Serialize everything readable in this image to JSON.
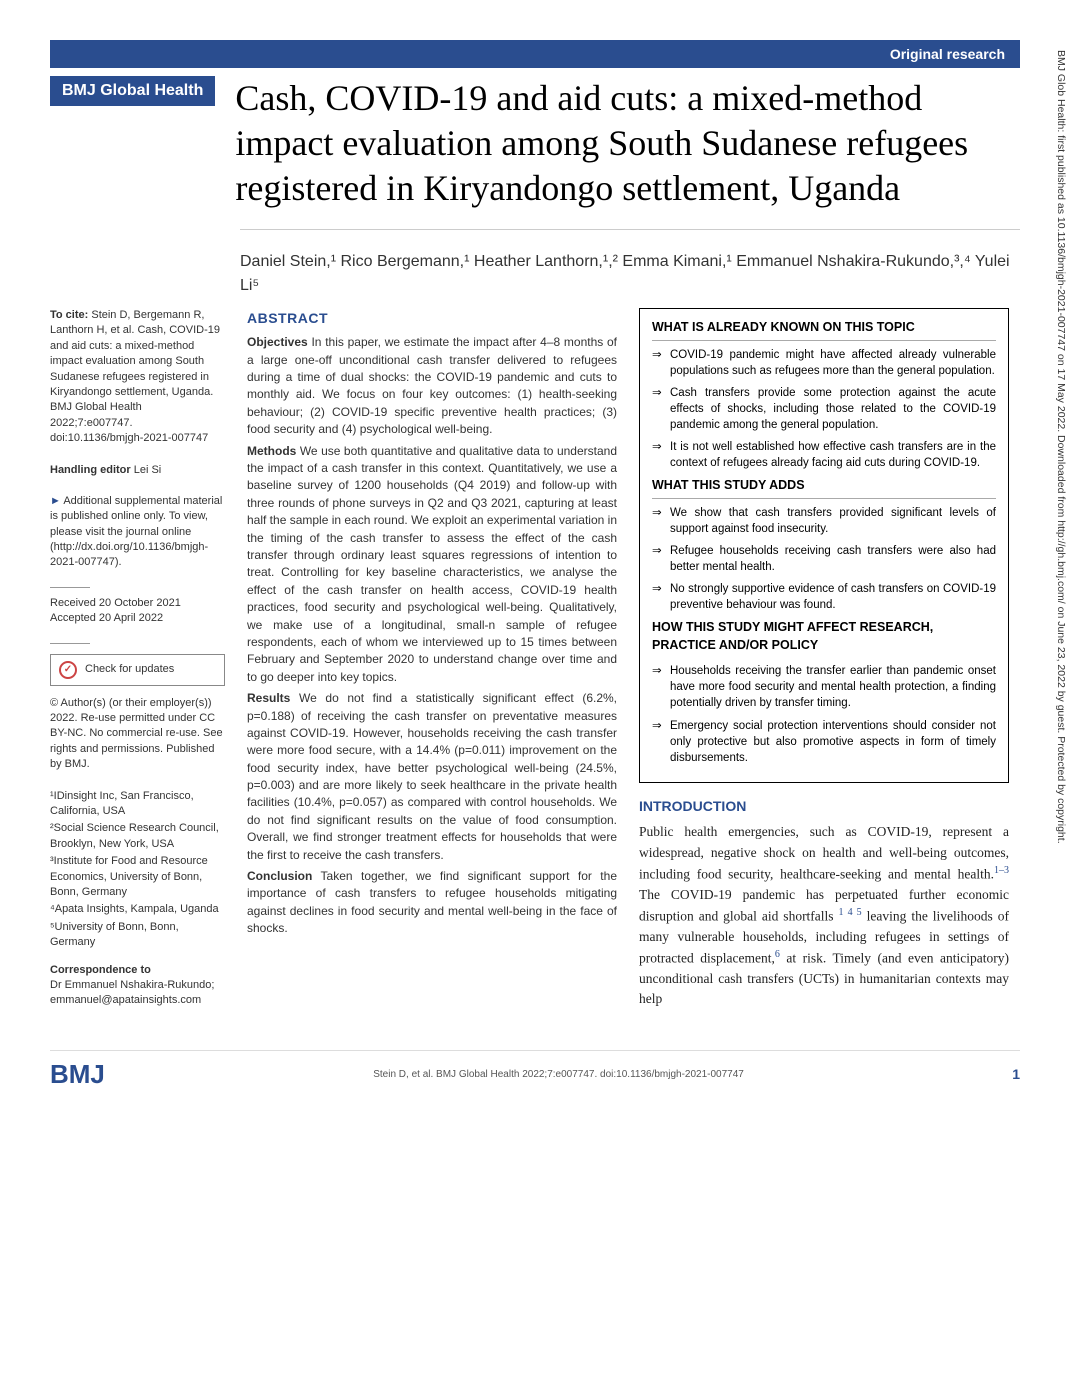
{
  "header": {
    "category": "Original research",
    "journal": "BMJ Global Health",
    "title": "Cash, COVID-19 and aid cuts: a mixed-method impact evaluation among South Sudanese refugees registered in Kiryandongo settlement, Uganda"
  },
  "authors": "Daniel Stein,¹ Rico Bergemann,¹ Heather Lanthorn,¹,² Emma Kimani,¹ Emmanuel Nshakira-Rukundo,³,⁴ Yulei Li⁵",
  "sidebar": {
    "cite_label": "To cite:",
    "cite_text": " Stein D, Bergemann R, Lanthorn H, et al. Cash, COVID-19 and aid cuts: a mixed-method impact evaluation among South Sudanese refugees registered in Kiryandongo settlement, Uganda. BMJ Global Health 2022;7:e007747. doi:10.1136/bmjgh-2021-007747",
    "editor_label": "Handling editor",
    "editor_name": " Lei Si",
    "supplement": "Additional supplemental material is published online only. To view, please visit the journal online (http://dx.doi.org/10.1136/bmjgh-2021-007747).",
    "received": "Received 20 October 2021",
    "accepted": "Accepted 20 April 2022",
    "check_updates": "Check for updates",
    "copyright": "© Author(s) (or their employer(s)) 2022. Re-use permitted under CC BY-NC. No commercial re-use. See rights and permissions. Published by BMJ.",
    "affils": [
      "¹IDinsight Inc, San Francisco, California, USA",
      "²Social Science Research Council, Brooklyn, New York, USA",
      "³Institute for Food and Resource Economics, University of Bonn, Bonn, Germany",
      "⁴Apata Insights, Kampala, Uganda",
      "⁵University of Bonn, Bonn, Germany"
    ],
    "corr_label": "Correspondence to",
    "corr_text": "Dr Emmanuel Nshakira-Rukundo; emmanuel@apatainsights.com"
  },
  "abstract": {
    "heading": "ABSTRACT",
    "objectives_label": "Objectives",
    "objectives": " In this paper, we estimate the impact after 4–8 months of a large one-off unconditional cash transfer delivered to refugees during a time of dual shocks: the COVID-19 pandemic and cuts to monthly aid. We focus on four key outcomes: (1) health-seeking behaviour; (2) COVID-19 specific preventive health practices; (3) food security and (4) psychological well-being.",
    "methods_label": "Methods",
    "methods": " We use both quantitative and qualitative data to understand the impact of a cash transfer in this context. Quantitatively, we use a baseline survey of 1200 households (Q4 2019) and follow-up with three rounds of phone surveys in Q2 and Q3 2021, capturing at least half the sample in each round. We exploit an experimental variation in the timing of the cash transfer to assess the effect of the cash transfer through ordinary least squares regressions of intention to treat. Controlling for key baseline characteristics, we analyse the effect of the cash transfer on health access, COVID-19 health practices, food security and psychological well-being. Qualitatively, we make use of a longitudinal, small-n sample of refugee respondents, each of whom we interviewed up to 15 times between February and September 2020 to understand change over time and to go deeper into key topics.",
    "results_label": "Results",
    "results": " We do not find a statistically significant effect (6.2%, p=0.188) of receiving the cash transfer on preventative measures against COVID-19. However, households receiving the cash transfer were more food secure, with a 14.4% (p=0.011) improvement on the food security index, have better psychological well-being (24.5%, p=0.003) and are more likely to seek healthcare in the private health facilities (10.4%, p=0.057) as compared with control households. We do not find significant results on the value of food consumption. Overall, we find stronger treatment effects for households that were the first to receive the cash transfers.",
    "conclusion_label": "Conclusion",
    "conclusion": " Taken together, we find significant support for the importance of cash transfers to refugee households mitigating against declines in food security and mental well-being in the face of shocks."
  },
  "boxes": {
    "known_heading": "WHAT IS ALREADY KNOWN ON THIS TOPIC",
    "known": [
      "COVID-19 pandemic might have affected already vulnerable populations such as refugees more than the general population.",
      "Cash transfers provide some protection against the acute effects of shocks, including those related to the COVID-19 pandemic among the general population.",
      "It is not well established how effective cash transfers are in the context of refugees already facing aid cuts during COVID-19."
    ],
    "adds_heading": "WHAT THIS STUDY ADDS",
    "adds": [
      "We show that cash transfers provided significant levels of support against food insecurity.",
      "Refugee households receiving cash transfers were also had better mental health.",
      "No strongly supportive evidence of cash transfers on COVID-19 preventive behaviour was found."
    ],
    "affect_heading": "HOW THIS STUDY MIGHT AFFECT RESEARCH, PRACTICE AND/OR POLICY",
    "affect": [
      "Households receiving the transfer earlier than pandemic onset have more food security and mental health protection, a finding potentially driven by transfer timing.",
      "Emergency social protection interventions should consider not only protective but also promotive aspects in form of timely disbursements."
    ]
  },
  "intro": {
    "heading": "INTRODUCTION",
    "text_html": "Public health emergencies, such as COVID-19, represent a widespread, negative shock on health and well-being outcomes, including food security, healthcare-seeking and mental health.<sup>1–3</sup> The COVID-19 pandemic has perpetuated further economic disruption and global aid shortfalls <sup>1 4 5</sup> leaving the livelihoods of many vulnerable households, including refugees in settings of protracted displacement,<sup>6</sup> at risk. Timely (and even anticipatory) unconditional cash transfers (UCTs) in humanitarian contexts may help"
  },
  "footer": {
    "logo": "BMJ",
    "citation": "Stein D, et al. BMJ Global Health 2022;7:e007747. doi:10.1136/bmjgh-2021-007747",
    "page": "1"
  },
  "side_note": "BMJ Glob Health: first published as 10.1136/bmjgh-2021-007747 on 17 May 2022. Downloaded from http://gh.bmj.com/ on June 23, 2022 by guest. Protected by copyright."
}
